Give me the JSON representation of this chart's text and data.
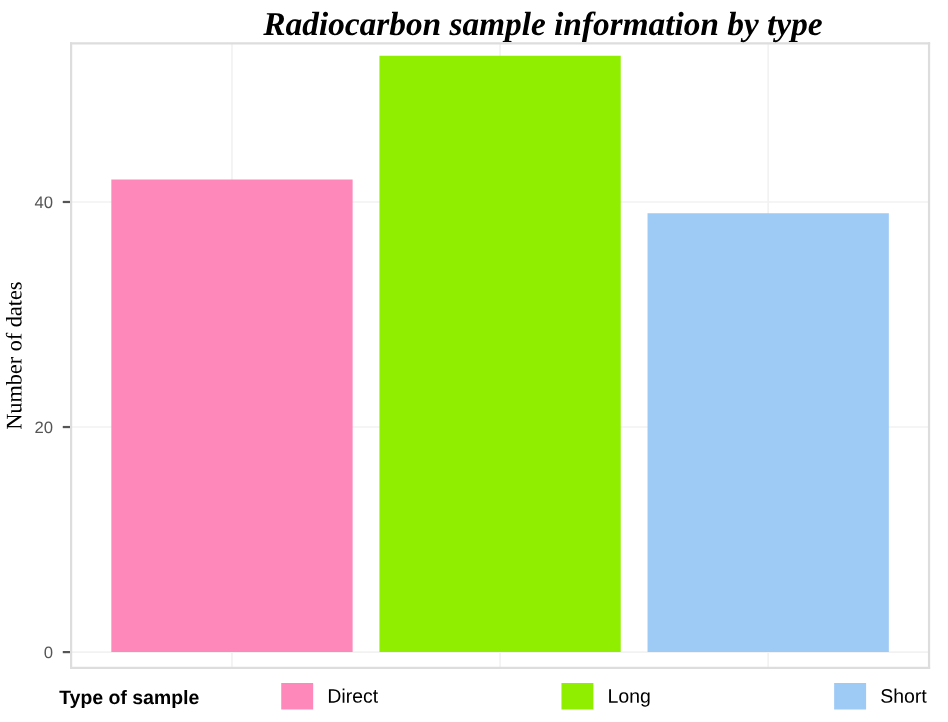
{
  "chart_data": {
    "type": "bar",
    "title": "Radiocarbon sample information by type",
    "ylabel": "Number of dates",
    "legend_title": "Type of sample",
    "categories": [
      null,
      null,
      null
    ],
    "series": [
      {
        "name": "Direct",
        "color": "#ff88bb",
        "values": [
          42,
          null,
          null
        ]
      },
      {
        "name": "Long",
        "color": "#90ee00",
        "values": [
          null,
          53,
          null
        ]
      },
      {
        "name": "Short",
        "color": "#9ecaf6",
        "values": [
          null,
          null,
          39
        ]
      }
    ],
    "ylim": [
      -1.4,
      54.1
    ],
    "yticks": [
      0,
      20,
      40
    ],
    "grid": true,
    "legend": "bottom"
  }
}
